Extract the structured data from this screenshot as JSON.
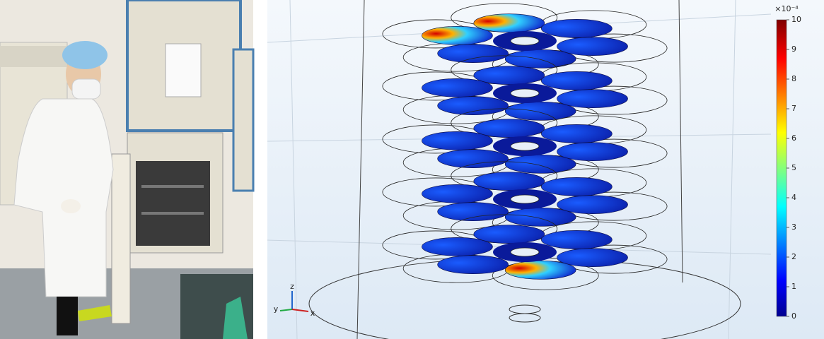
{
  "photo": {
    "description_labels": []
  },
  "simulation": {
    "colorbar": {
      "multiplier": "×10⁻⁴",
      "ticks": [
        0,
        1,
        2,
        3,
        4,
        5,
        6,
        7,
        8,
        9,
        10
      ],
      "lim": [
        0,
        10
      ]
    },
    "axes_triad": {
      "z": "z",
      "y": "y",
      "x": "x"
    }
  }
}
